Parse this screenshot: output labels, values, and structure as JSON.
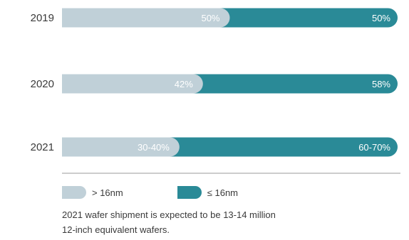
{
  "chart_data": {
    "type": "bar",
    "stacked": true,
    "orientation": "horizontal",
    "categories": [
      "2019",
      "2020",
      "2021"
    ],
    "series": [
      {
        "name": "> 16nm",
        "values": [
          50,
          42,
          35
        ],
        "labels": [
          "50%",
          "42%",
          "30-40%"
        ],
        "color": "#c0d0d8"
      },
      {
        "name": "≤ 16nm",
        "values": [
          50,
          58,
          65
        ],
        "labels": [
          "50%",
          "58%",
          "60-70%"
        ],
        "color": "#2a8a97"
      }
    ],
    "xlim": [
      0,
      100
    ]
  },
  "legend": {
    "items": [
      {
        "label": "> 16nm",
        "color": "#c0d0d8"
      },
      {
        "label": "≤ 16nm",
        "color": "#2a8a97"
      }
    ]
  },
  "note": {
    "line1": "2021 wafer shipment is expected to be 13-14 million",
    "line2": "12-inch equivalent wafers."
  },
  "colors": {
    "axis": "#9a9a9a",
    "text": "#3a3a3a"
  }
}
